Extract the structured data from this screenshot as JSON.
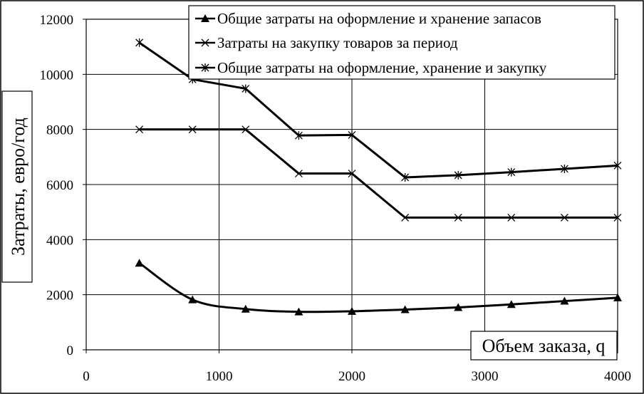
{
  "chart_data": {
    "type": "line",
    "title": "",
    "xlabel": "Объем заказа, q",
    "ylabel": "Затраты, евро/год",
    "xlim": [
      0,
      4000
    ],
    "ylim": [
      0,
      12000
    ],
    "x_ticks": [
      0,
      1000,
      2000,
      3000,
      4000
    ],
    "y_ticks": [
      0,
      2000,
      4000,
      6000,
      8000,
      10000,
      12000
    ],
    "grid": true,
    "legend_position": "top-right",
    "x": [
      400,
      800,
      1200,
      1600,
      2000,
      2400,
      2800,
      3200,
      3600,
      4000
    ],
    "series": [
      {
        "name": "Общие затраты на оформление и хранение запасов",
        "marker": "triangle",
        "smooth": true,
        "values": [
          3150,
          1820,
          1480,
          1380,
          1400,
          1460,
          1540,
          1650,
          1770,
          1890
        ]
      },
      {
        "name": "Затраты на закупку товаров за период",
        "marker": "x",
        "smooth": false,
        "values": [
          8000,
          8000,
          8000,
          6400,
          6400,
          4800,
          4800,
          4800,
          4800,
          4800
        ]
      },
      {
        "name": "Общие затраты на оформление, хранение и закупку",
        "marker": "star",
        "smooth": false,
        "values": [
          11150,
          9820,
          9480,
          7780,
          7800,
          6260,
          6340,
          6450,
          6570,
          6690
        ]
      }
    ]
  }
}
